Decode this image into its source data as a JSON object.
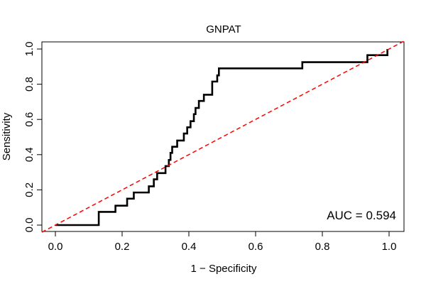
{
  "chart_data": {
    "type": "line",
    "title": "GNPAT",
    "xlabel": "1 − Specificity",
    "ylabel": "Sensitivity",
    "xlim": [
      0,
      1
    ],
    "ylim": [
      0,
      1
    ],
    "x_ticks": [
      0.0,
      0.2,
      0.4,
      0.6,
      0.8,
      1.0
    ],
    "x_tick_labels": [
      "0.0",
      "0.2",
      "0.4",
      "0.6",
      "0.8",
      "1.0"
    ],
    "y_ticks": [
      0.0,
      0.2,
      0.4,
      0.6,
      0.8,
      1.0
    ],
    "y_tick_labels": [
      "0.0",
      "0.2",
      "0.4",
      "0.6",
      "0.8",
      "1.0"
    ],
    "grid": false,
    "legend": "none",
    "annotation": "AUC = 0.594",
    "series": [
      {
        "style": "step",
        "color": "#000000",
        "points": [
          [
            0.0,
            0.0
          ],
          [
            0.13,
            0.0
          ],
          [
            0.13,
            0.075
          ],
          [
            0.18,
            0.075
          ],
          [
            0.18,
            0.11
          ],
          [
            0.215,
            0.11
          ],
          [
            0.215,
            0.15
          ],
          [
            0.235,
            0.15
          ],
          [
            0.235,
            0.185
          ],
          [
            0.28,
            0.185
          ],
          [
            0.28,
            0.22
          ],
          [
            0.295,
            0.22
          ],
          [
            0.295,
            0.26
          ],
          [
            0.305,
            0.26
          ],
          [
            0.305,
            0.295
          ],
          [
            0.33,
            0.295
          ],
          [
            0.33,
            0.335
          ],
          [
            0.34,
            0.335
          ],
          [
            0.34,
            0.37
          ],
          [
            0.345,
            0.37
          ],
          [
            0.345,
            0.41
          ],
          [
            0.35,
            0.41
          ],
          [
            0.35,
            0.445
          ],
          [
            0.365,
            0.445
          ],
          [
            0.365,
            0.48
          ],
          [
            0.385,
            0.48
          ],
          [
            0.385,
            0.52
          ],
          [
            0.395,
            0.52
          ],
          [
            0.395,
            0.555
          ],
          [
            0.405,
            0.555
          ],
          [
            0.405,
            0.59
          ],
          [
            0.415,
            0.59
          ],
          [
            0.415,
            0.63
          ],
          [
            0.42,
            0.63
          ],
          [
            0.42,
            0.665
          ],
          [
            0.43,
            0.665
          ],
          [
            0.43,
            0.705
          ],
          [
            0.445,
            0.705
          ],
          [
            0.445,
            0.74
          ],
          [
            0.47,
            0.74
          ],
          [
            0.47,
            0.815
          ],
          [
            0.485,
            0.815
          ],
          [
            0.485,
            0.85
          ],
          [
            0.49,
            0.85
          ],
          [
            0.49,
            0.89
          ],
          [
            0.74,
            0.89
          ],
          [
            0.74,
            0.925
          ],
          [
            0.935,
            0.925
          ],
          [
            0.935,
            0.965
          ],
          [
            0.995,
            0.965
          ],
          [
            0.995,
            1.0
          ]
        ]
      },
      {
        "style": "dashed",
        "color": "#ff0000",
        "points": [
          [
            0,
            0
          ],
          [
            1,
            1
          ]
        ]
      }
    ]
  }
}
